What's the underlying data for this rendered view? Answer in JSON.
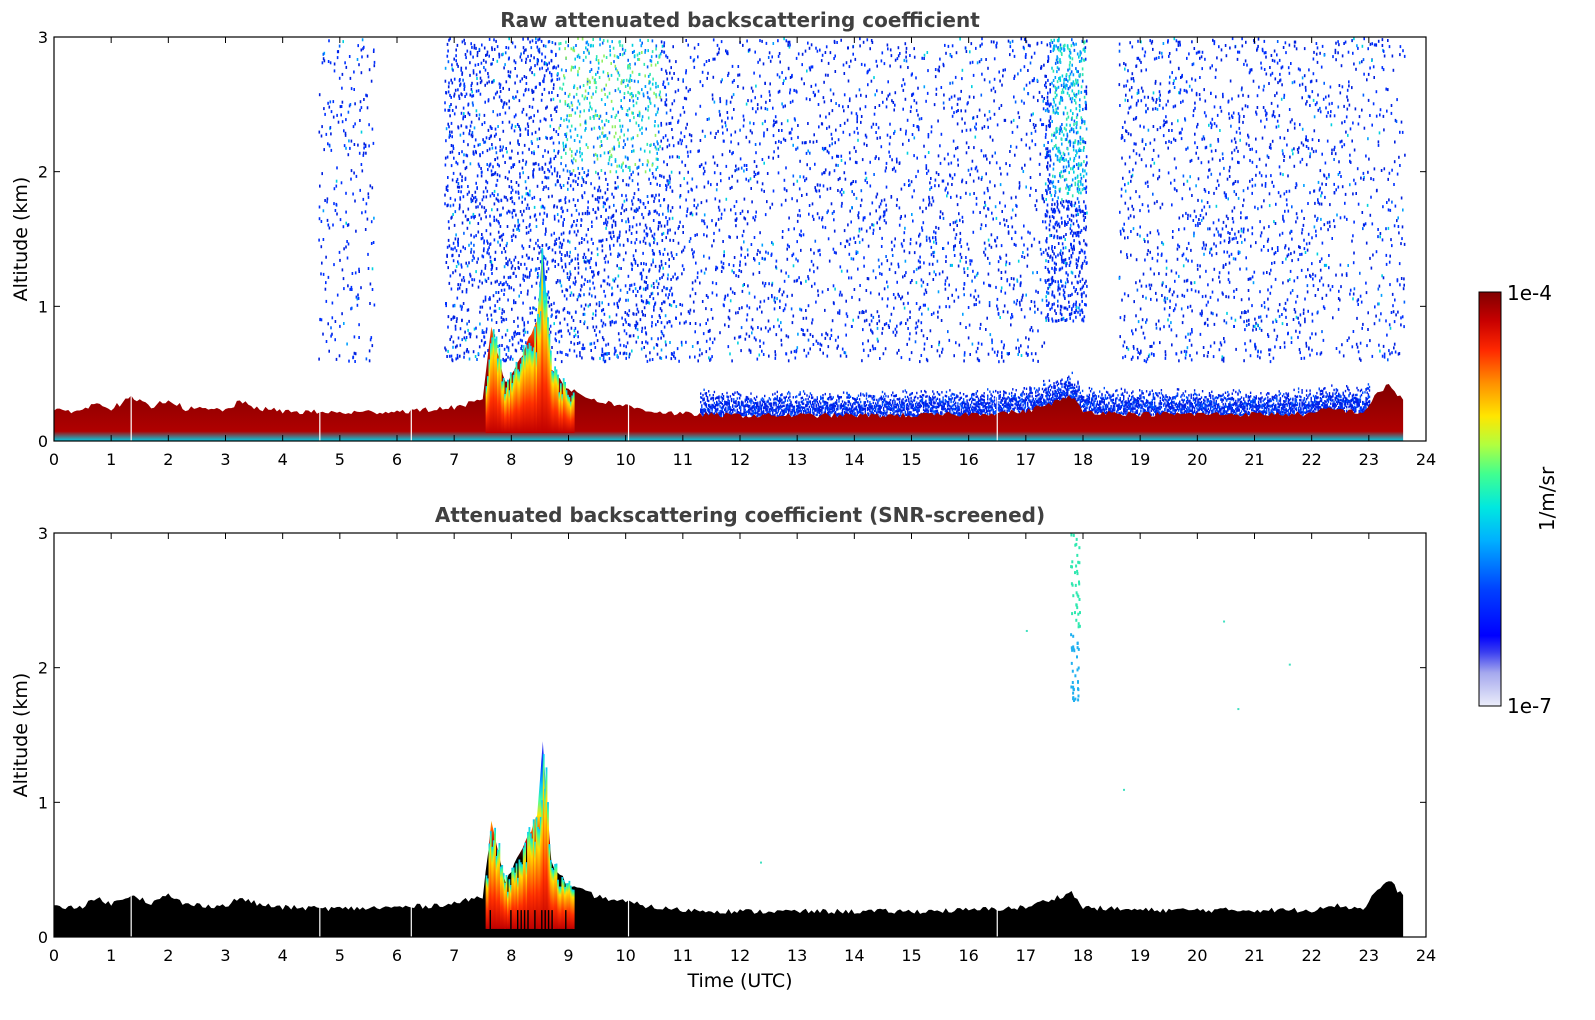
{
  "chart_data": [
    {
      "type": "heatmap",
      "title": "Raw attenuated backscattering coefficient",
      "xlabel": "",
      "ylabel": "Altitude (km)",
      "xlim": [
        0,
        24
      ],
      "ylim": [
        0,
        3
      ],
      "x_ticks": [
        "0",
        "1",
        "2",
        "3",
        "4",
        "5",
        "6",
        "7",
        "8",
        "9",
        "10",
        "11",
        "12",
        "13",
        "14",
        "15",
        "16",
        "17",
        "18",
        "19",
        "20",
        "21",
        "22",
        "23",
        "24"
      ],
      "y_ticks": [
        "0",
        "1",
        "2",
        "3"
      ],
      "data_end_hour": 23.6,
      "boundary_layer_top_km": [
        [
          0.0,
          0.22
        ],
        [
          0.5,
          0.23
        ],
        [
          0.8,
          0.29
        ],
        [
          1.0,
          0.24
        ],
        [
          1.35,
          0.32
        ],
        [
          1.7,
          0.25
        ],
        [
          2.0,
          0.31
        ],
        [
          2.3,
          0.24
        ],
        [
          3.0,
          0.23
        ],
        [
          3.25,
          0.29
        ],
        [
          3.6,
          0.24
        ],
        [
          4.0,
          0.22
        ],
        [
          5.0,
          0.21
        ],
        [
          6.0,
          0.22
        ],
        [
          6.5,
          0.23
        ],
        [
          7.0,
          0.25
        ],
        [
          7.5,
          0.3
        ],
        [
          7.65,
          0.85
        ],
        [
          7.9,
          0.42
        ],
        [
          8.2,
          0.65
        ],
        [
          8.45,
          0.9
        ],
        [
          8.55,
          1.45
        ],
        [
          8.7,
          0.55
        ],
        [
          9.0,
          0.38
        ],
        [
          9.5,
          0.3
        ],
        [
          10.0,
          0.26
        ],
        [
          10.5,
          0.22
        ],
        [
          11.0,
          0.2
        ],
        [
          12.0,
          0.19
        ],
        [
          13.0,
          0.19
        ],
        [
          14.0,
          0.19
        ],
        [
          15.0,
          0.19
        ],
        [
          16.0,
          0.2
        ],
        [
          17.0,
          0.22
        ],
        [
          17.8,
          0.33
        ],
        [
          18.0,
          0.22
        ],
        [
          19.0,
          0.2
        ],
        [
          20.0,
          0.2
        ],
        [
          21.0,
          0.2
        ],
        [
          22.0,
          0.2
        ],
        [
          22.3,
          0.24
        ],
        [
          22.9,
          0.21
        ],
        [
          23.15,
          0.35
        ],
        [
          23.35,
          0.42
        ],
        [
          23.6,
          0.3
        ]
      ],
      "colorbar": {
        "label": "1/m/sr",
        "max_label": "1e-4",
        "min_label": "1e-7",
        "colormap": "jet-like",
        "scale": "log"
      }
    },
    {
      "type": "heatmap",
      "title": "Attenuated backscattering coefficient (SNR-screened)",
      "xlabel": "Time (UTC)",
      "ylabel": "Altitude (km)",
      "xlim": [
        0,
        24
      ],
      "ylim": [
        0,
        3
      ],
      "x_ticks": [
        "0",
        "1",
        "2",
        "3",
        "4",
        "5",
        "6",
        "7",
        "8",
        "9",
        "10",
        "11",
        "12",
        "13",
        "14",
        "15",
        "16",
        "17",
        "18",
        "19",
        "20",
        "21",
        "22",
        "23",
        "24"
      ],
      "y_ticks": [
        "0",
        "1",
        "2",
        "3"
      ],
      "data_end_hour": 23.6,
      "features": [
        {
          "description": "boundary layer",
          "alt_km": [
            0,
            0.45
          ]
        },
        {
          "description": "plume",
          "hour": 8.55,
          "top_km": 1.4
        },
        {
          "description": "cloud streak",
          "hour": 17.85,
          "alt_km": [
            1.75,
            3.0
          ]
        }
      ]
    }
  ],
  "colors": {
    "dark_red": "#800000",
    "red": "#e60000",
    "orange": "#ff8000",
    "yellow": "#ffe600",
    "green": "#80ff80",
    "cyan": "#00e6e6",
    "blue": "#0030ff",
    "dark_blue": "#0000c8",
    "faint_blue": "#d8daf5",
    "masked_black": "#000000"
  }
}
